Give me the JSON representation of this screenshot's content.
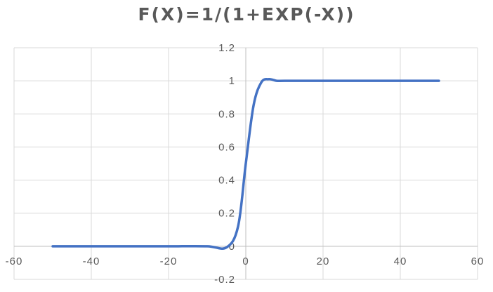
{
  "chart_data": {
    "type": "line",
    "title": "F(X)=1/(1+EXP(-X))",
    "xlabel": "",
    "ylabel": "",
    "xlim": [
      -60,
      60
    ],
    "ylim": [
      -0.2,
      1.2
    ],
    "x_ticks": [
      -60,
      -40,
      -20,
      0,
      20,
      40,
      60
    ],
    "y_ticks": [
      -0.2,
      0,
      0.2,
      0.4,
      0.6,
      0.8,
      1,
      1.2
    ],
    "x_tick_labels": [
      "-60",
      "-40",
      "-20",
      "0",
      "20",
      "40",
      "60"
    ],
    "y_tick_labels": [
      "-0.2",
      "0",
      "0.2",
      "0.4",
      "0.6",
      "0.8",
      "1",
      "1.2"
    ],
    "grid": true,
    "legend": "none",
    "series": [
      {
        "color": "#4472C4",
        "x": [
          -50,
          -40,
          -30,
          -20,
          -10,
          -5,
          -2,
          0,
          2,
          4,
          6,
          8,
          10,
          20,
          30,
          40,
          50
        ],
        "y": [
          0,
          0,
          0,
          0,
          0,
          -0.007,
          0.12,
          0.5,
          0.85,
          0.99,
          1.01,
          1.0,
          1.0,
          1.0,
          1.0,
          1.0,
          1.0
        ]
      }
    ]
  }
}
